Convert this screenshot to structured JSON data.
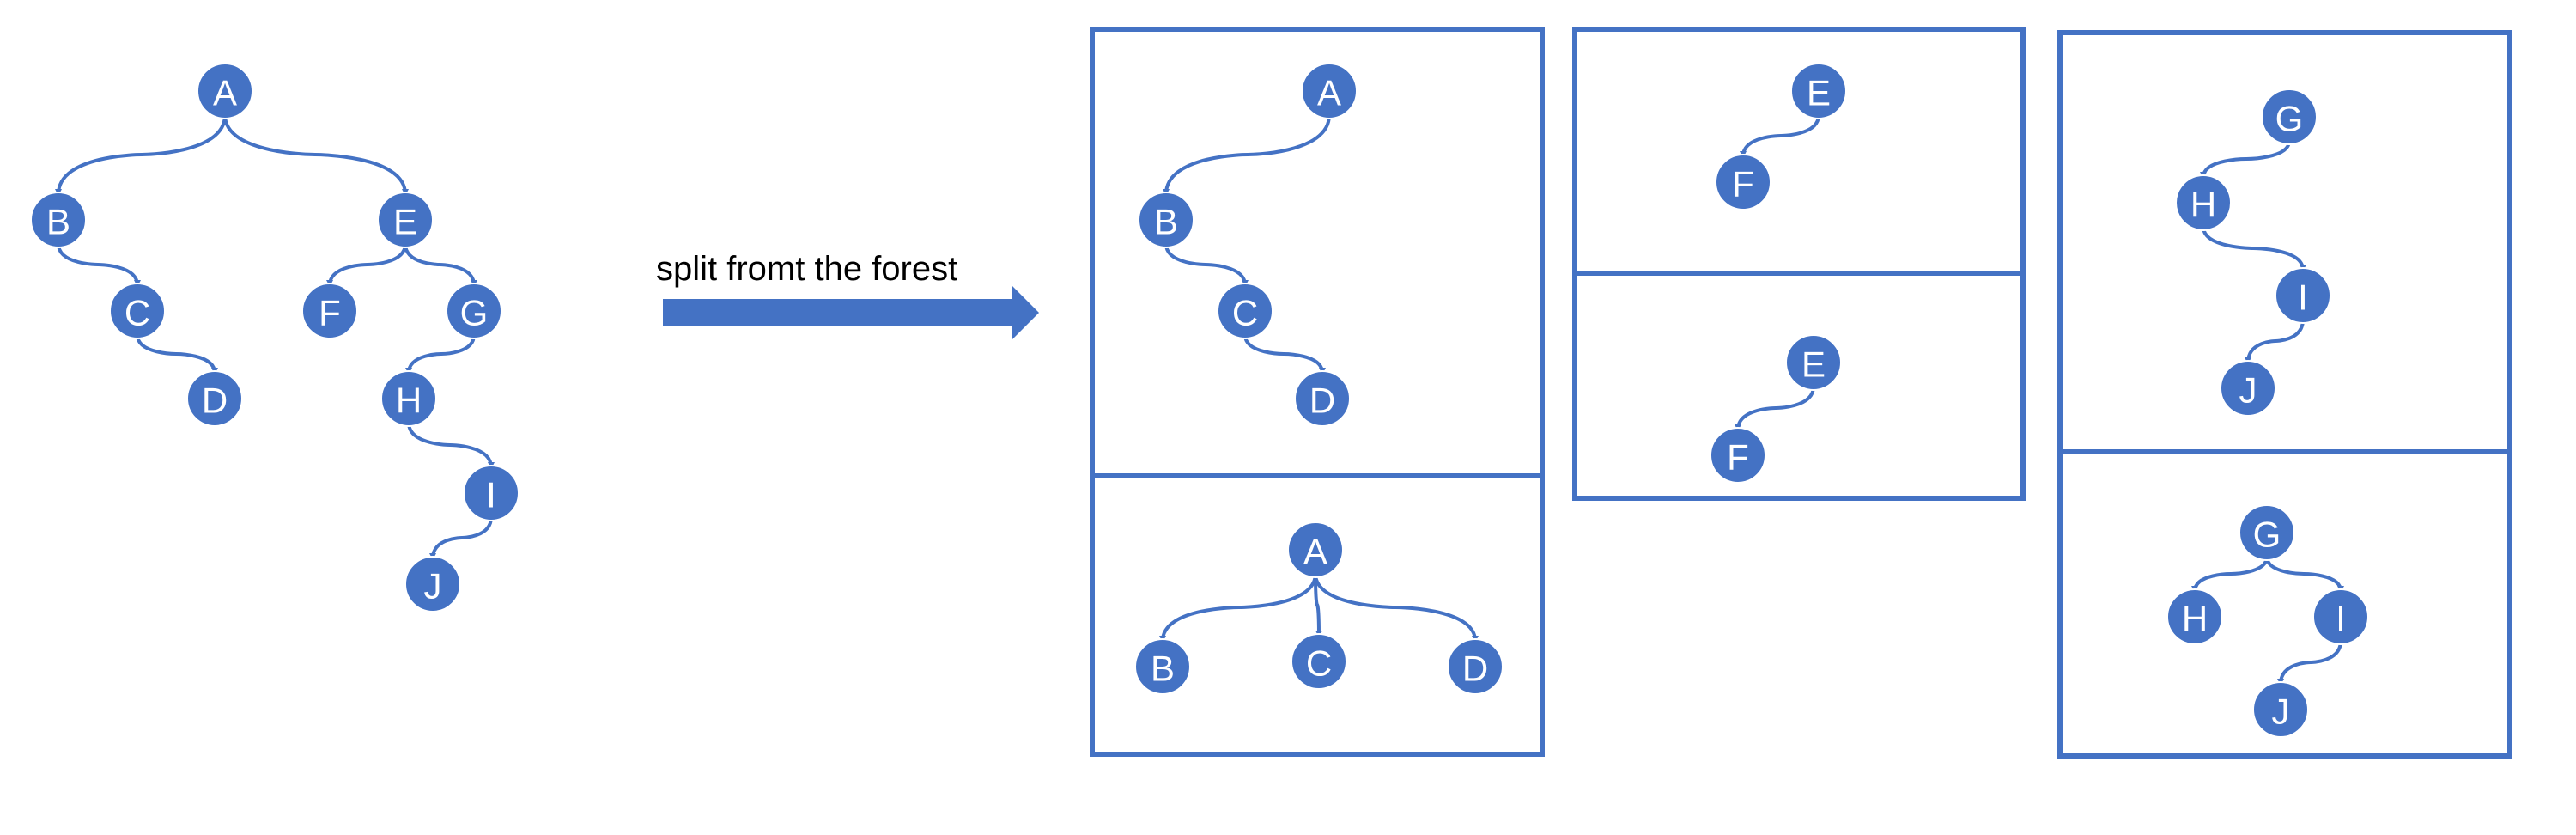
{
  "diagram": {
    "arrow_label": "split fromt the forest",
    "colors": {
      "node_fill": "#4472C4",
      "node_text": "#FFFFFF",
      "edge": "#4472C4",
      "frame": "#4472C4",
      "arrow": "#4472C4",
      "background": "#FFFFFF"
    },
    "forest": {
      "nodes": [
        "A",
        "B",
        "C",
        "D",
        "E",
        "F",
        "G",
        "H",
        "I",
        "J"
      ],
      "edges": [
        [
          "A",
          "B"
        ],
        [
          "A",
          "E"
        ],
        [
          "B",
          "C"
        ],
        [
          "C",
          "D"
        ],
        [
          "E",
          "F"
        ],
        [
          "E",
          "G"
        ],
        [
          "G",
          "H"
        ],
        [
          "H",
          "I"
        ],
        [
          "I",
          "J"
        ]
      ]
    },
    "trees": [
      {
        "group": "A",
        "binary": {
          "nodes": [
            "A",
            "B",
            "C",
            "D"
          ],
          "edges": [
            [
              "A",
              "B"
            ],
            [
              "B",
              "C"
            ],
            [
              "C",
              "D"
            ]
          ]
        },
        "general": {
          "nodes": [
            "A",
            "B",
            "C",
            "D"
          ],
          "edges": [
            [
              "A",
              "B"
            ],
            [
              "A",
              "C"
            ],
            [
              "A",
              "D"
            ]
          ]
        }
      },
      {
        "group": "E",
        "binary": {
          "nodes": [
            "E",
            "F"
          ],
          "edges": [
            [
              "E",
              "F"
            ]
          ]
        },
        "general": {
          "nodes": [
            "E",
            "F"
          ],
          "edges": [
            [
              "E",
              "F"
            ]
          ]
        }
      },
      {
        "group": "G",
        "binary": {
          "nodes": [
            "G",
            "H",
            "I",
            "J"
          ],
          "edges": [
            [
              "G",
              "H"
            ],
            [
              "H",
              "I"
            ],
            [
              "I",
              "J"
            ]
          ]
        },
        "general": {
          "nodes": [
            "G",
            "H",
            "I",
            "J"
          ],
          "edges": [
            [
              "G",
              "H"
            ],
            [
              "G",
              "I"
            ],
            [
              "I",
              "J"
            ]
          ]
        }
      }
    ]
  }
}
